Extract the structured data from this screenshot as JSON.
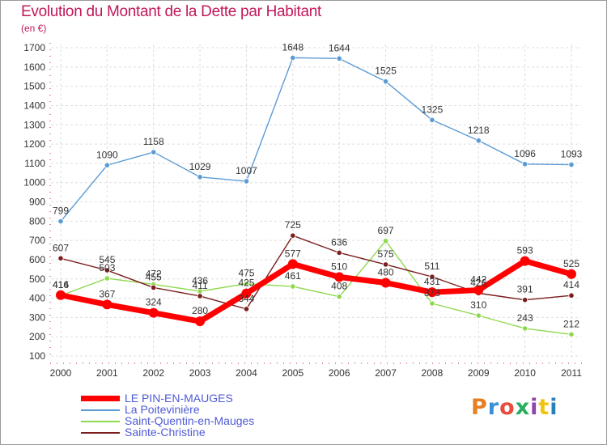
{
  "header": {
    "title": "Evolution du Montant de la Dette par Habitant",
    "unit": "(en €)"
  },
  "logo": {
    "text": "Proxiti",
    "colors": [
      "#e67e22",
      "#3a8fd6",
      "#e74c3c",
      "#27ae60",
      "#8e44ad",
      "#f1c40f",
      "#2980b9"
    ]
  },
  "chart_data": {
    "type": "line",
    "title": "Evolution du Montant de la Dette par Habitant",
    "ylabel": "(en €)",
    "xlabel": "",
    "x": [
      "2000",
      "2001",
      "2002",
      "2003",
      "2004",
      "2005",
      "2006",
      "2007",
      "2008",
      "2009",
      "2010",
      "2011"
    ],
    "yticks": [
      100,
      200,
      300,
      400,
      500,
      600,
      700,
      800,
      900,
      1000,
      1100,
      1200,
      1300,
      1400,
      1500,
      1600,
      1700
    ],
    "ylim": [
      100,
      1700
    ],
    "grid": true,
    "legend": "bottom-left",
    "series": [
      {
        "name": "LE PIN-EN-MAUGES",
        "color": "#ff0000",
        "values": [
          416,
          367,
          324,
          280,
          425,
          577,
          510,
          480,
          431,
          442,
          593,
          525
        ]
      },
      {
        "name": "La Poitevinière",
        "color": "#5b9bd5",
        "values": [
          799,
          1090,
          1158,
          1029,
          1007,
          1648,
          1644,
          1525,
          1325,
          1218,
          1096,
          1093
        ]
      },
      {
        "name": "Saint-Quentin-en-Mauges",
        "color": "#8fd94f",
        "values": [
          414,
          503,
          472,
          436,
          475,
          461,
          408,
          697,
          373,
          310,
          243,
          212
        ]
      },
      {
        "name": "Sainte-Christine",
        "color": "#7b1e1e",
        "values": [
          607,
          545,
          455,
          411,
          344,
          725,
          636,
          575,
          511,
          426,
          391,
          414
        ]
      }
    ]
  }
}
